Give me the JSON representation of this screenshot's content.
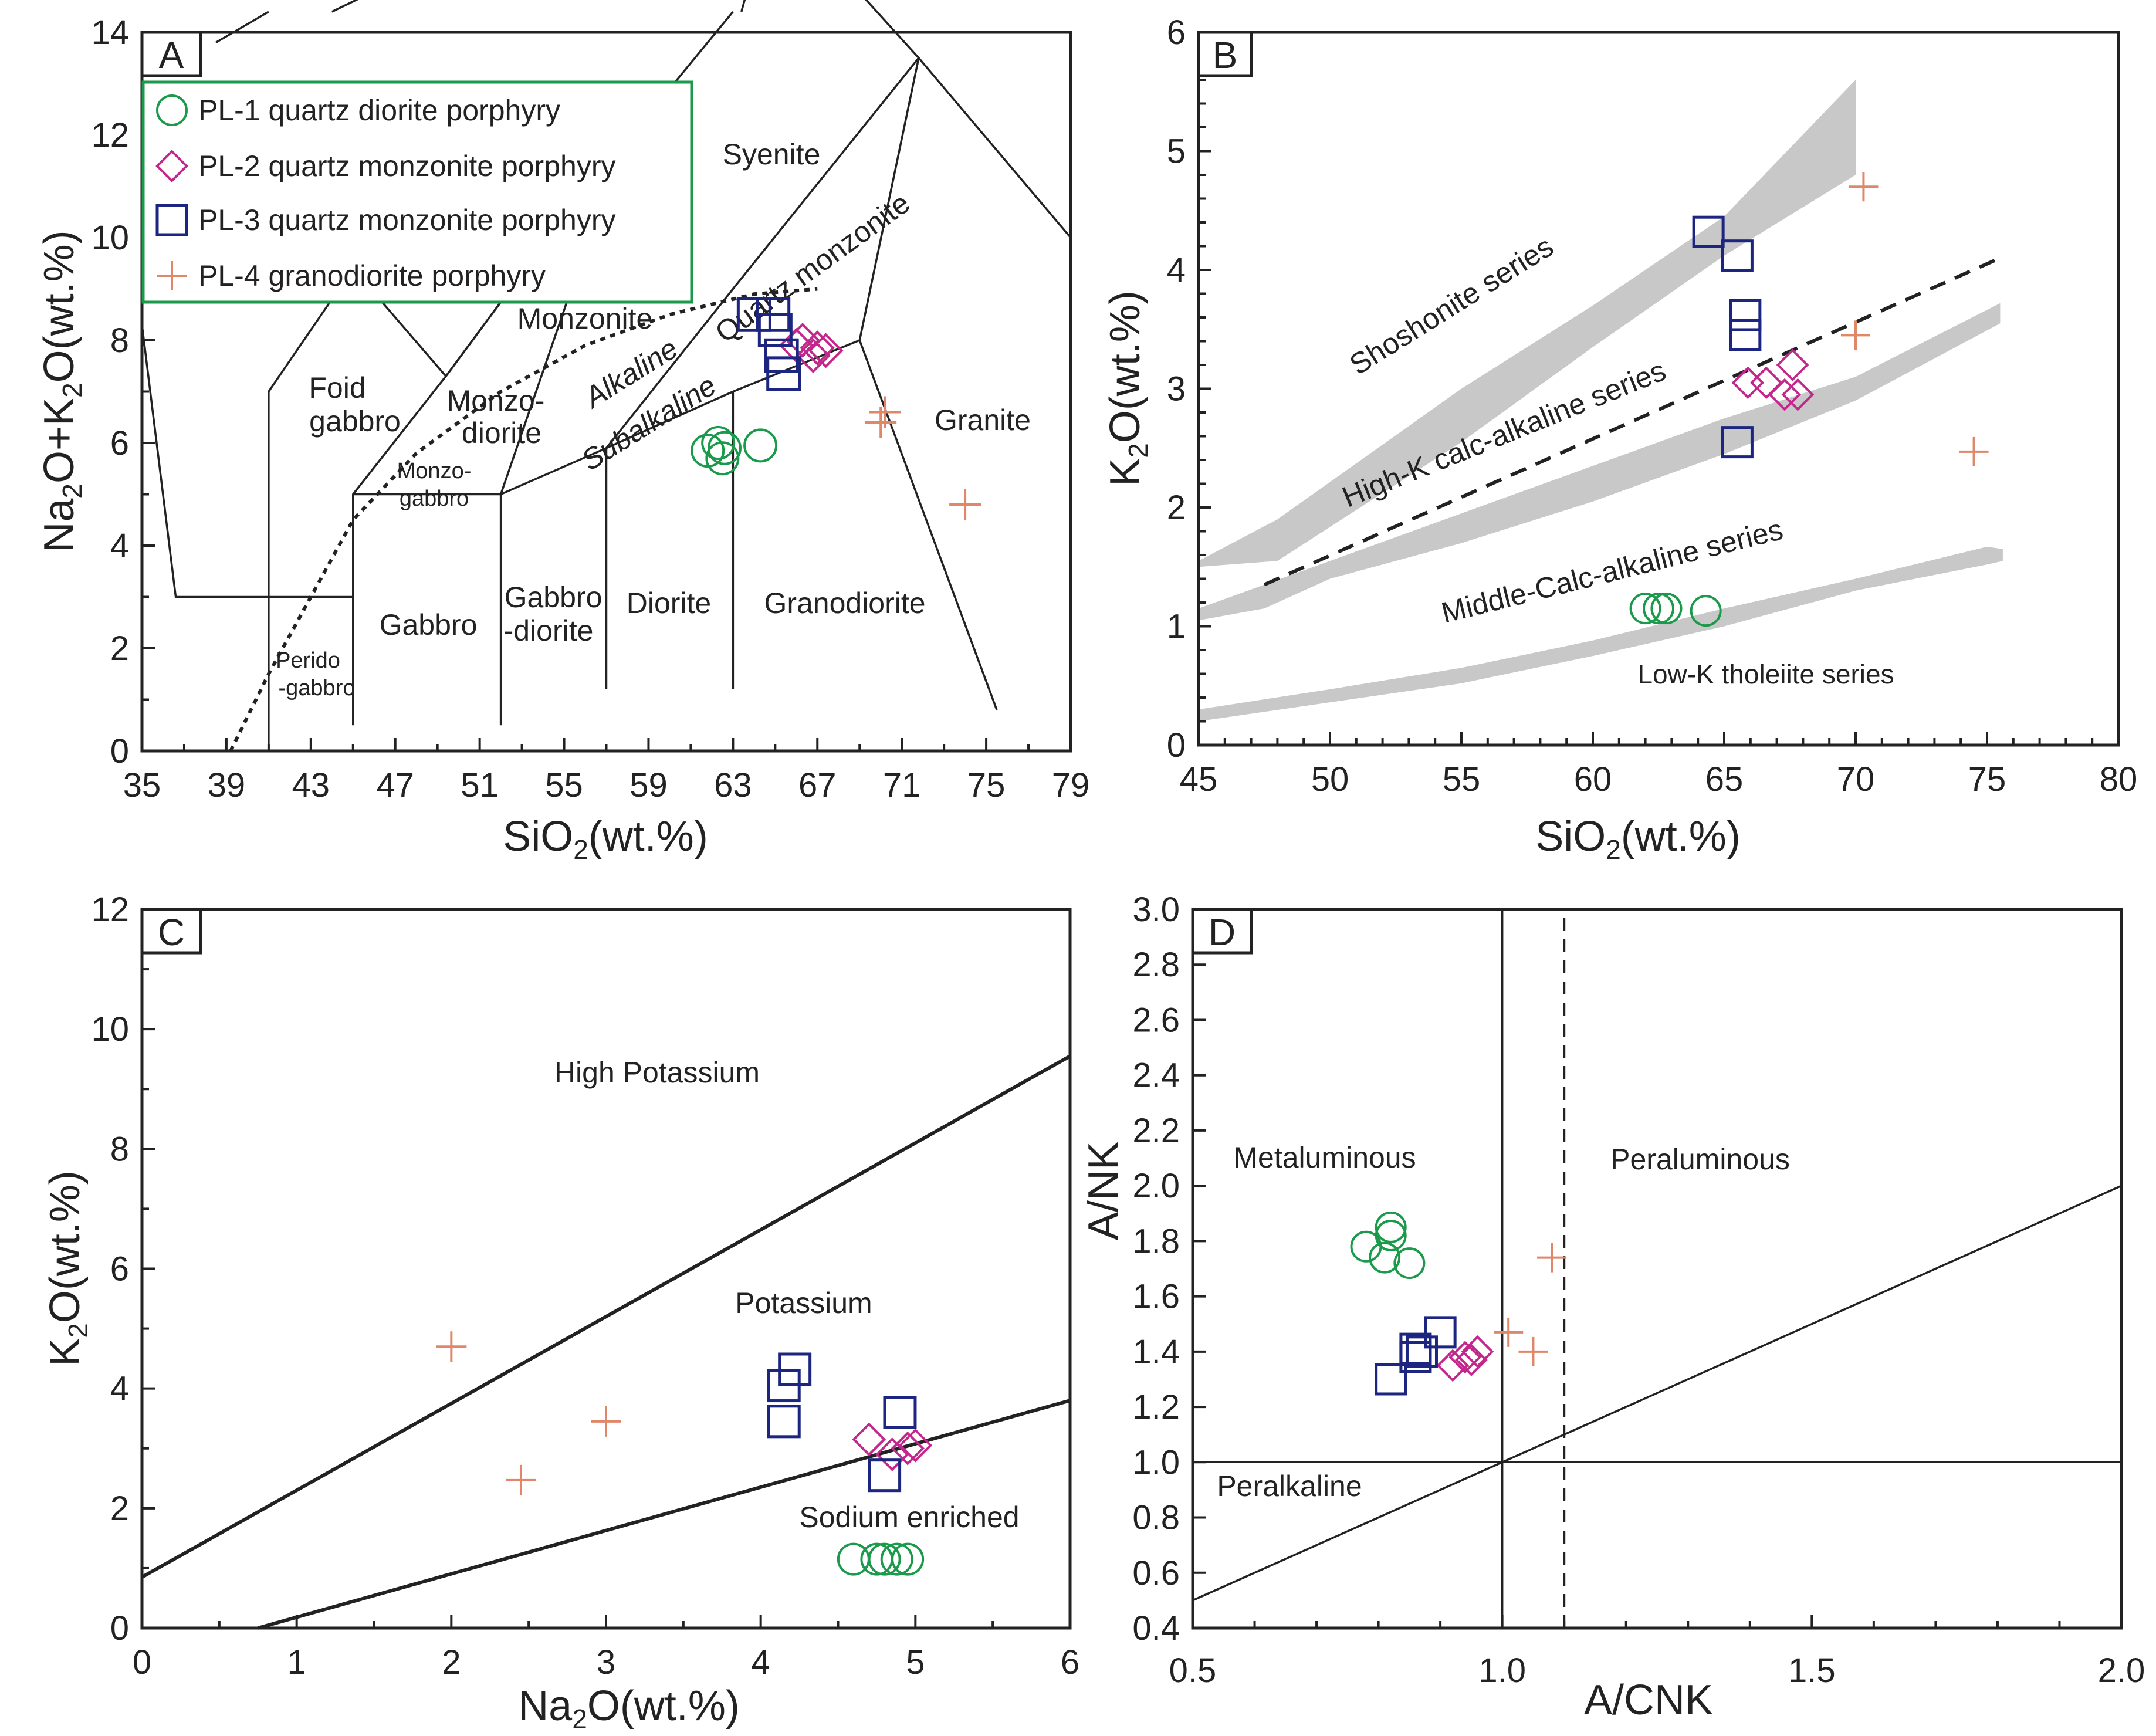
{
  "colors": {
    "PL-1": "#1a9a4a",
    "PL-2": "#c2288c",
    "PL-3": "#1c2580",
    "PL-4": "#e0876a",
    "band": "#c8c8c8",
    "legend_border": "#1a9a4a"
  },
  "legend": {
    "items": [
      {
        "key": "PL-1",
        "marker": "circle",
        "label": "PL-1 quartz diorite porphyry"
      },
      {
        "key": "PL-2",
        "marker": "diamond",
        "label": "PL-2 quartz monzonite porphyry"
      },
      {
        "key": "PL-3",
        "marker": "square",
        "label": "PL-3 quartz monzonite porphyry"
      },
      {
        "key": "PL-4",
        "marker": "plus",
        "label": "PL-4  granodiorite porphyry"
      }
    ]
  },
  "chart_data": [
    {
      "panel": "A",
      "type": "scatter",
      "xlabel": "SiO2(wt.%)",
      "ylabel": "Na2O+K2O(wt.%)",
      "xlim": [
        35,
        79
      ],
      "ylim": [
        0,
        14
      ],
      "xticks": [
        "35",
        "39",
        "43",
        "47",
        "51",
        "55",
        "59",
        "63",
        "67",
        "71",
        "75",
        "79"
      ],
      "yticks": [
        "0",
        "2",
        "4",
        "6",
        "8",
        "10",
        "12",
        "14"
      ],
      "regions": [
        "Foid gabbro",
        "Monzo-diorite",
        "Monzonite",
        "Syenite",
        "Quartz monzonite",
        "Monzo-gabbro",
        "Perido-gabbro",
        "Gabbro",
        "Gabbro-diorite",
        "Diorite",
        "Granodiorite",
        "Granite",
        "Alkaline",
        "Subalkaline"
      ],
      "series": [
        {
          "key": "PL-1",
          "x": [
            61.8,
            62.3,
            62.5,
            62.6,
            64.3
          ],
          "y": [
            5.85,
            6.0,
            5.7,
            5.9,
            5.95
          ]
        },
        {
          "key": "PL-2",
          "x": [
            66.0,
            66.8,
            67.4,
            66.3,
            67.0
          ],
          "y": [
            7.9,
            7.7,
            7.8,
            8.0,
            7.85
          ]
        },
        {
          "key": "PL-3",
          "x": [
            64.0,
            64.9,
            65.3,
            65.4,
            65.0
          ],
          "y": [
            8.5,
            8.5,
            7.7,
            7.35,
            8.2
          ]
        },
        {
          "key": "PL-4",
          "x": [
            70.2,
            70.0,
            74.0
          ],
          "y": [
            6.6,
            6.4,
            4.8
          ]
        }
      ]
    },
    {
      "panel": "B",
      "type": "scatter",
      "xlabel": "SiO2(wt.%)",
      "ylabel": "K2O(wt.%)",
      "xlim": [
        45,
        80
      ],
      "ylim": [
        0,
        6
      ],
      "xticks": [
        "45",
        "50",
        "55",
        "60",
        "65",
        "70",
        "75",
        "80"
      ],
      "yticks": [
        "0",
        "1",
        "2",
        "3",
        "4",
        "5",
        "6"
      ],
      "series_labels": [
        "Shoshonite series",
        "High-K calc-alkaline series",
        "Middle-Calc-alkaline series",
        "Low-K tholeiite series"
      ],
      "series": [
        {
          "key": "PL-1",
          "x": [
            62.0,
            62.5,
            62.8,
            64.3
          ],
          "y": [
            1.15,
            1.15,
            1.15,
            1.13
          ]
        },
        {
          "key": "PL-2",
          "x": [
            65.9,
            66.6,
            67.3,
            67.6,
            67.8
          ],
          "y": [
            3.05,
            3.05,
            2.95,
            3.2,
            2.95
          ]
        },
        {
          "key": "PL-3",
          "x": [
            64.4,
            65.5,
            65.8,
            65.8,
            65.5
          ],
          "y": [
            4.32,
            4.12,
            3.62,
            3.45,
            2.55
          ]
        },
        {
          "key": "PL-4",
          "x": [
            70.3,
            70.0,
            74.5
          ],
          "y": [
            4.7,
            3.45,
            2.47
          ]
        }
      ]
    },
    {
      "panel": "C",
      "type": "scatter",
      "xlabel": "Na2O(wt.%)",
      "ylabel": "K2O(wt.%)",
      "xlim": [
        0,
        6
      ],
      "ylim": [
        0,
        12
      ],
      "xticks": [
        "0",
        "1",
        "2",
        "3",
        "4",
        "5",
        "6"
      ],
      "yticks": [
        "0",
        "2",
        "4",
        "6",
        "8",
        "10",
        "12"
      ],
      "regions": [
        "High Potassium",
        "Potassium",
        "Sodium enriched"
      ],
      "series": [
        {
          "key": "PL-1",
          "x": [
            4.6,
            4.75,
            4.8,
            4.88,
            4.95
          ],
          "y": [
            1.15,
            1.15,
            1.15,
            1.15,
            1.15
          ]
        },
        {
          "key": "PL-2",
          "x": [
            4.7,
            4.85,
            4.95,
            5.0
          ],
          "y": [
            3.15,
            2.9,
            3.0,
            3.05
          ]
        },
        {
          "key": "PL-3",
          "x": [
            4.15,
            4.22,
            4.15,
            4.9,
            4.8
          ],
          "y": [
            4.05,
            4.32,
            3.45,
            3.6,
            2.55
          ]
        },
        {
          "key": "PL-4",
          "x": [
            2.0,
            3.0,
            2.45
          ],
          "y": [
            4.7,
            3.45,
            2.47
          ]
        }
      ]
    },
    {
      "panel": "D",
      "type": "scatter",
      "xlabel": "A/CNK",
      "ylabel": "A/NK",
      "xlim": [
        0.5,
        2.0
      ],
      "ylim": [
        0.4,
        3.0
      ],
      "xticks": [
        "0.5",
        "1.0",
        "1.5",
        "2.0"
      ],
      "yticks": [
        "0.4",
        "0.6",
        "0.8",
        "1.0",
        "1.2",
        "1.4",
        "1.6",
        "1.8",
        "2.0",
        "2.2",
        "2.4",
        "2.6",
        "2.8",
        "3.0"
      ],
      "regions": [
        "Metaluminous",
        "Peraluminous",
        "Peralkaline"
      ],
      "series": [
        {
          "key": "PL-1",
          "x": [
            0.78,
            0.81,
            0.82,
            0.82,
            0.85
          ],
          "y": [
            1.78,
            1.74,
            1.85,
            1.82,
            1.72
          ]
        },
        {
          "key": "PL-2",
          "x": [
            0.92,
            0.94,
            0.95,
            0.96
          ],
          "y": [
            1.35,
            1.38,
            1.37,
            1.4
          ]
        },
        {
          "key": "PL-3",
          "x": [
            0.82,
            0.86,
            0.87,
            0.86,
            0.9
          ],
          "y": [
            1.3,
            1.38,
            1.4,
            1.41,
            1.47
          ]
        },
        {
          "key": "PL-4",
          "x": [
            1.08,
            1.01,
            1.05
          ],
          "y": [
            1.74,
            1.47,
            1.4
          ]
        }
      ]
    }
  ],
  "panels": {
    "A": {
      "letter": "A"
    },
    "B": {
      "letter": "B"
    },
    "C": {
      "letter": "C"
    },
    "D": {
      "letter": "D"
    }
  }
}
